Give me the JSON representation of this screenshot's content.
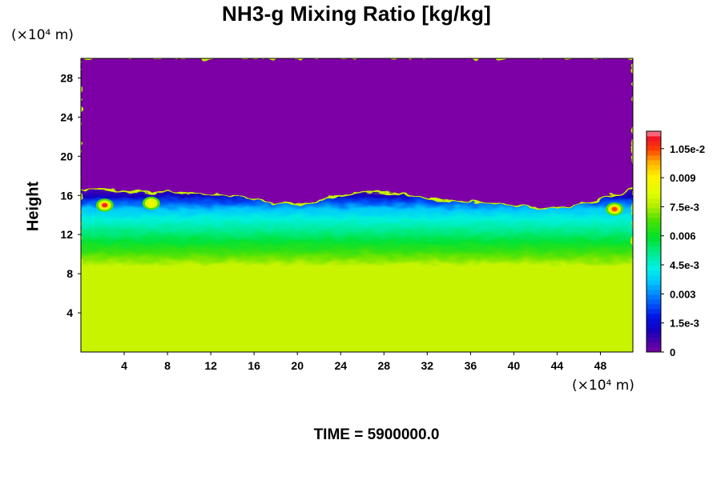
{
  "chart_data": {
    "type": "heatmap",
    "title": "NH3-g Mixing Ratio [kg/kg]",
    "ylabel": "Height",
    "x_unit": "(×10⁴ m)",
    "y_unit": "(×10⁴ m)",
    "footer": "TIME = 5900000.0",
    "x_range": [
      0,
      51
    ],
    "y_range": [
      0,
      30
    ],
    "x_ticks": [
      "4",
      "8",
      "12",
      "16",
      "20",
      "24",
      "28",
      "32",
      "36",
      "40",
      "44",
      "48"
    ],
    "y_ticks": [
      "4",
      "8",
      "12",
      "16",
      "20",
      "24",
      "28"
    ],
    "colorbar": {
      "range": [
        0,
        0.0114
      ],
      "labels": [
        {
          "value": 0,
          "text": "0"
        },
        {
          "value": 0.0015,
          "text": "1.5e-3"
        },
        {
          "value": 0.003,
          "text": "0.003"
        },
        {
          "value": 0.0045,
          "text": "4.5e-3"
        },
        {
          "value": 0.006,
          "text": "0.006"
        },
        {
          "value": 0.0075,
          "text": "7.5e-3"
        },
        {
          "value": 0.009,
          "text": "0.009"
        },
        {
          "value": 0.0105,
          "text": "1.05e-2"
        }
      ]
    },
    "field": {
      "lower_value": 0.0078,
      "upper_value": 0.0,
      "cloud_top_profile": [
        [
          0,
          16.6
        ],
        [
          2,
          16.5
        ],
        [
          5,
          16.2
        ],
        [
          8,
          16.3
        ],
        [
          11,
          16.1
        ],
        [
          14,
          15.9
        ],
        [
          17,
          15.3
        ],
        [
          20,
          15.0
        ],
        [
          23,
          15.6
        ],
        [
          26,
          16.3
        ],
        [
          29,
          16.2
        ],
        [
          31,
          15.7
        ],
        [
          34,
          15.4
        ],
        [
          37,
          15.2
        ],
        [
          40,
          15.0
        ],
        [
          43,
          14.5
        ],
        [
          45,
          14.8
        ],
        [
          48,
          15.6
        ],
        [
          51,
          16.6
        ]
      ],
      "hotspots": [
        {
          "x": 2.2,
          "y": 15.0,
          "peak": 0.011
        },
        {
          "x": 49.3,
          "y": 14.6,
          "peak": 0.0105
        },
        {
          "x": 6.5,
          "y": 15.2,
          "peak": 0.0085
        }
      ]
    }
  }
}
